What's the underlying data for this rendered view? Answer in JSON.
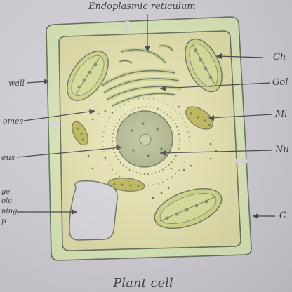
{
  "figure": {
    "caption": "Plant cell"
  },
  "labels": {
    "endoplasmic_reticulum": "Endoplasmic reticulum",
    "chloroplast": "Ch",
    "golgi": "Gol",
    "mitochondria": "Mi",
    "nucleus_right": "Nu",
    "cell_membrane_right": "C",
    "cell_wall_left": "wall",
    "ribosomes_left": "omes",
    "nucleus_left": "eus",
    "vacuole_line1": "ge",
    "vacuole_line2": "ole",
    "vacuole_line3": "ning",
    "vacuole_line4": "p"
  },
  "colors": {
    "cytoplasm": "#e3e0a8",
    "cell_wall": "#d7e6b6",
    "outline": "#5e6a57",
    "organelle_green": "#c7cf7a",
    "mitochondria": "#b7b145",
    "vacuole": "#d6d3d8",
    "nucleus": "#aeb38a"
  }
}
